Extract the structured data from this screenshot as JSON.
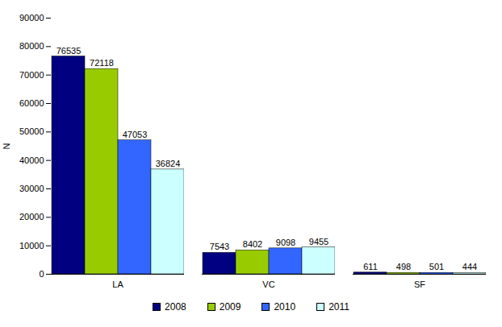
{
  "chart_data": {
    "type": "bar",
    "categories": [
      "LA",
      "VC",
      "SF"
    ],
    "series": [
      {
        "name": "2008",
        "color": "#000080",
        "values": [
          76535,
          7543,
          611
        ]
      },
      {
        "name": "2009",
        "color": "#99CC00",
        "values": [
          72118,
          8402,
          498
        ]
      },
      {
        "name": "2010",
        "color": "#3366FF",
        "values": [
          47053,
          9098,
          501
        ]
      },
      {
        "name": "2011",
        "color": "#CCFFFF",
        "values": [
          36824,
          9455,
          444
        ]
      }
    ],
    "y_label": "N",
    "ylim": [
      0,
      90000
    ],
    "yticks": [
      0,
      10000,
      20000,
      30000,
      40000,
      50000,
      60000,
      70000,
      80000,
      90000
    ],
    "grid": false,
    "legend": "bottom",
    "data_labels": true
  }
}
